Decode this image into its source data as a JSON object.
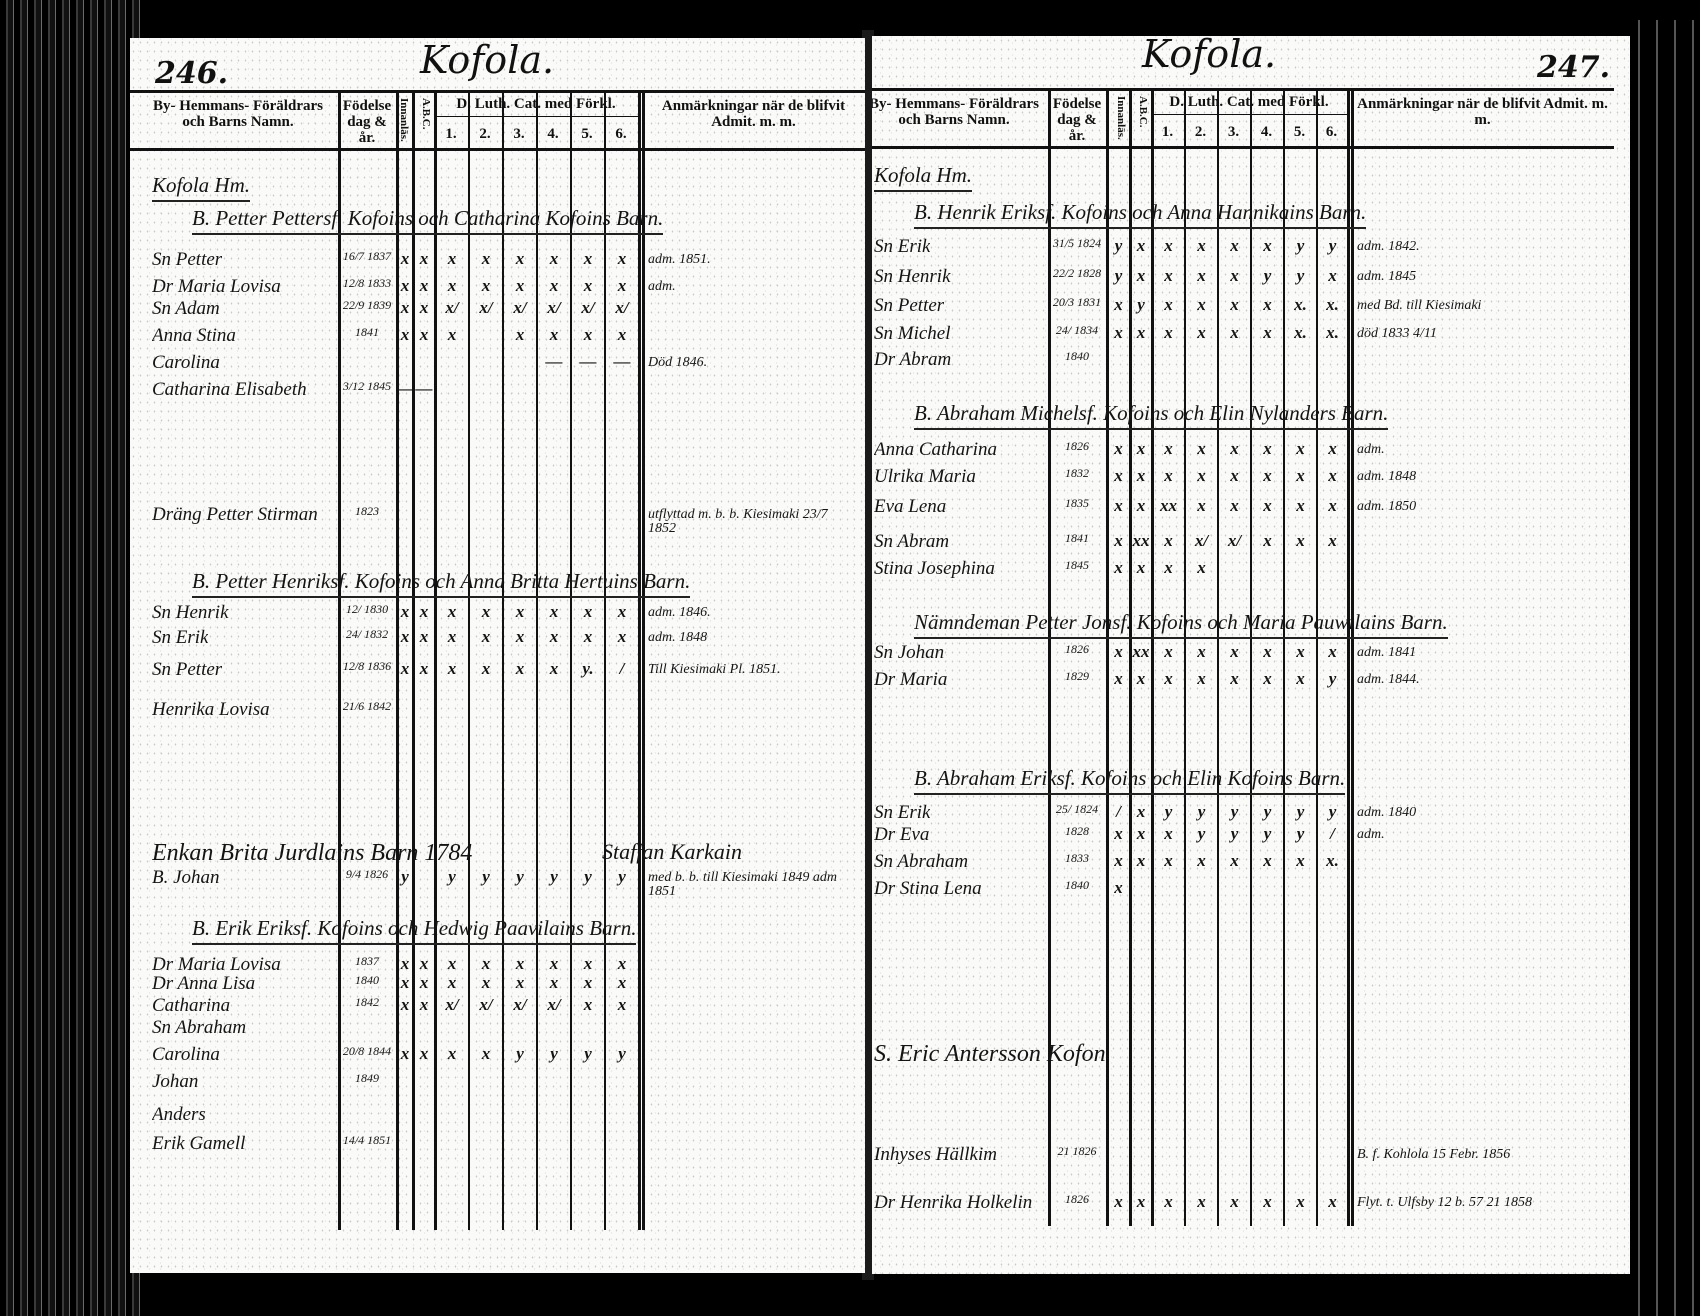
{
  "left_page": {
    "page_number": "246.",
    "village_title": "Kofola.",
    "headers": {
      "name": "By- Hemmans- Föräldrars och Barns Namn.",
      "birth": "Födelse dag & år.",
      "reading": "Innanläs.",
      "abc": "A.B.C.",
      "catechism": "D. Luth. Cat. med Förkl.",
      "cat_cols": [
        "1.",
        "2.",
        "3.",
        "4.",
        "5.",
        "6."
      ],
      "remarks": "Anmärkningar när de blifvit Admit. m. m."
    },
    "rows": [
      {
        "type": "section",
        "name": "Kofola Hm."
      },
      {
        "type": "section",
        "name": "B. Petter Pettersf. Kofoins och Catharina Kofoins Barn."
      },
      {
        "type": "person",
        "name": "Sn Petter",
        "date": "16/7 1837",
        "marks": [
          "x",
          "x",
          "x",
          "x",
          "x",
          "x",
          "x",
          "x"
        ],
        "remark": "adm. 1851."
      },
      {
        "type": "person",
        "name": "Dr Maria Lovisa",
        "date": "12/8 1833",
        "marks": [
          "x",
          "x",
          "x",
          "x",
          "x",
          "x",
          "x",
          "x"
        ],
        "remark": "adm."
      },
      {
        "type": "person",
        "name": "Sn Adam",
        "date": "22/9 1839",
        "marks": [
          "x",
          "x",
          "x/",
          "x/",
          "x/",
          "x/",
          "x/",
          "x/"
        ],
        "remark": ""
      },
      {
        "type": "person",
        "name": "Anna Stina",
        "date": "1841",
        "marks": [
          "x",
          "x",
          "x",
          "",
          "x",
          "x",
          "x",
          "x"
        ],
        "remark": ""
      },
      {
        "type": "person",
        "name": "Carolina",
        "date": "",
        "marks": [
          "",
          "",
          "",
          "",
          "",
          "—",
          "—",
          "—"
        ],
        "remark": "Död 1846."
      },
      {
        "type": "person",
        "name": "Catharina Elisabeth",
        "date": "3/12 1845",
        "marks": [
          "—",
          "—",
          "",
          "",
          "",
          "",
          "",
          ""
        ],
        "remark": ""
      },
      {
        "type": "person",
        "name": "Dräng Petter Stirman",
        "date": "1823",
        "marks": [
          "",
          "",
          "",
          "",
          "",
          "",
          "",
          ""
        ],
        "remark": "utflyttad   m. b. b. Kiesimaki 23/7 1852"
      },
      {
        "type": "section",
        "name": "B. Petter Henriksf. Kofoins och Anna Britta Hertuins Barn."
      },
      {
        "type": "person",
        "name": "Sn Henrik",
        "date": "12/ 1830",
        "marks": [
          "x",
          "x",
          "x",
          "x",
          "x",
          "x",
          "x",
          "x"
        ],
        "remark": "adm. 1846."
      },
      {
        "type": "person",
        "name": "Sn Erik",
        "date": "24/ 1832",
        "marks": [
          "x",
          "x",
          "x",
          "x",
          "x",
          "x",
          "x",
          "x"
        ],
        "remark": "adm. 1848"
      },
      {
        "type": "person",
        "name": "Sn Petter",
        "date": "12/8 1836",
        "marks": [
          "x",
          "x",
          "x",
          "x",
          "x",
          "x",
          "y.",
          "/"
        ],
        "remark": "Till Kiesimaki Pl. 1851."
      },
      {
        "type": "person",
        "name": "Henrika Lovisa",
        "date": "21/6 1842",
        "marks": [
          "",
          "",
          "",
          "",
          "",
          "",
          "",
          ""
        ],
        "remark": ""
      },
      {
        "type": "free",
        "name": "Enkan Brita Jurdlains Barn 1784",
        "remark": "Staffan Karkain"
      },
      {
        "type": "person",
        "name": "B. Johan",
        "date": "9/4 1826",
        "marks": [
          "y",
          "",
          "y",
          "y",
          "y",
          "y",
          "y",
          "y"
        ],
        "remark": "med b. b. till Kiesimaki 1849 adm 1851"
      },
      {
        "type": "section",
        "name": "B. Erik Eriksf. Kofoins och Hedwig Paavilains Barn."
      },
      {
        "type": "person",
        "name": "Dr Maria Lovisa",
        "date": "1837",
        "marks": [
          "x",
          "x",
          "x",
          "x",
          "x",
          "x",
          "x",
          "x"
        ],
        "remark": ""
      },
      {
        "type": "person",
        "name": "Dr Anna Lisa",
        "date": "1840",
        "marks": [
          "x",
          "x",
          "x",
          "x",
          "x",
          "x",
          "x",
          "x"
        ],
        "remark": ""
      },
      {
        "type": "person",
        "name": "Catharina",
        "date": "1842",
        "marks": [
          "x",
          "x",
          "x/",
          "x/",
          "x/",
          "x/",
          "x",
          "x"
        ],
        "remark": ""
      },
      {
        "type": "person",
        "name": "Sn Abraham",
        "date": "",
        "marks": [
          "",
          "",
          "",
          "",
          "",
          "",
          "",
          ""
        ],
        "remark": ""
      },
      {
        "type": "person",
        "name": "Carolina",
        "date": "20/8 1844",
        "marks": [
          "x",
          "x",
          "x",
          "x",
          "y",
          "y",
          "y",
          "y"
        ],
        "remark": ""
      },
      {
        "type": "person",
        "name": "Johan",
        "date": "1849",
        "marks": [
          "",
          "",
          "",
          "",
          "",
          "",
          "",
          ""
        ],
        "remark": ""
      },
      {
        "type": "person",
        "name": "Anders",
        "date": "",
        "marks": [
          "",
          "",
          "",
          "",
          "",
          "",
          "",
          ""
        ],
        "remark": ""
      },
      {
        "type": "person",
        "name": "Erik  Gamell",
        "date": "14/4 1851",
        "marks": [
          "",
          "",
          "",
          "",
          "",
          "",
          "",
          ""
        ],
        "remark": ""
      }
    ]
  },
  "right_page": {
    "page_number": "247.",
    "village_title": "Kofola.",
    "headers": {
      "name": "By- Hemmans- Föräldrars och Barns Namn.",
      "birth": "Födelse dag & år.",
      "reading": "Innanläs.",
      "abc": "A.B.C.",
      "catechism": "D. Luth. Cat. med Förkl.",
      "cat_cols": [
        "1.",
        "2.",
        "3.",
        "4.",
        "5.",
        "6."
      ],
      "remarks": "Anmärkningar när de blifvit Admit. m. m."
    },
    "rows": [
      {
        "type": "section",
        "name": "Kofola Hm."
      },
      {
        "type": "section",
        "name": "B. Henrik Eriksf. Kofoins och Anna Hannikains Barn."
      },
      {
        "type": "person",
        "name": "Sn Erik",
        "date": "31/5 1824",
        "marks": [
          "y",
          "x",
          "x",
          "x",
          "x",
          "x",
          "y",
          "y"
        ],
        "remark": "adm. 1842."
      },
      {
        "type": "person",
        "name": "Sn Henrik",
        "date": "22/2 1828",
        "marks": [
          "y",
          "x",
          "x",
          "x",
          "x",
          "y",
          "y",
          "x"
        ],
        "remark": "adm. 1845"
      },
      {
        "type": "person",
        "name": "Sn Petter",
        "date": "20/3 1831",
        "marks": [
          "x",
          "y",
          "x",
          "x",
          "x",
          "x",
          "x.",
          "x."
        ],
        "remark": "med Bd. till Kiesimaki"
      },
      {
        "type": "person",
        "name": "Sn Michel",
        "date": "24/ 1834",
        "marks": [
          "x",
          "x",
          "x",
          "x",
          "x",
          "x",
          "x.",
          "x."
        ],
        "remark": "död 1833 4/11"
      },
      {
        "type": "person",
        "name": "Dr Abram",
        "date": "1840",
        "marks": [
          "",
          "",
          "",
          "",
          "",
          "",
          "",
          ""
        ],
        "remark": ""
      },
      {
        "type": "section",
        "name": "B. Abraham Michelsf. Kofoins och Elin Nylanders Barn."
      },
      {
        "type": "person",
        "name": "Anna Catharina",
        "date": "1826",
        "marks": [
          "x",
          "x",
          "x",
          "x",
          "x",
          "x",
          "x",
          "x"
        ],
        "remark": "adm."
      },
      {
        "type": "person",
        "name": "Ulrika Maria",
        "date": "1832",
        "marks": [
          "x",
          "x",
          "x",
          "x",
          "x",
          "x",
          "x",
          "x"
        ],
        "remark": "adm. 1848"
      },
      {
        "type": "person",
        "name": "Eva Lena",
        "date": "1835",
        "marks": [
          "x",
          "x",
          "xx",
          "x",
          "x",
          "x",
          "x",
          "x"
        ],
        "remark": "adm. 1850"
      },
      {
        "type": "person",
        "name": "Sn Abram",
        "date": "1841",
        "marks": [
          "x",
          "xx",
          "x",
          "x/",
          "x/",
          "x",
          "x",
          "x"
        ],
        "remark": ""
      },
      {
        "type": "person",
        "name": "Stina Josephina",
        "date": "1845",
        "marks": [
          "x",
          "x",
          "x",
          "x",
          "",
          "",
          "",
          ""
        ],
        "remark": ""
      },
      {
        "type": "section",
        "name": "Nämndeman Petter Jonsf. Kofoins och Maria Pauwilains Barn."
      },
      {
        "type": "person",
        "name": "Sn Johan",
        "date": "1826",
        "marks": [
          "x",
          "xx",
          "x",
          "x",
          "x",
          "x",
          "x",
          "x"
        ],
        "remark": "adm. 1841"
      },
      {
        "type": "person",
        "name": "Dr Maria",
        "date": "1829",
        "marks": [
          "x",
          "x",
          "x",
          "x",
          "x",
          "x",
          "x",
          "y"
        ],
        "remark": "adm. 1844."
      },
      {
        "type": "section",
        "name": "B. Abraham Eriksf. Kofoins och Elin Kofoins Barn."
      },
      {
        "type": "person",
        "name": "Sn Erik",
        "date": "25/ 1824",
        "marks": [
          "/",
          "x",
          "y",
          "y",
          "y",
          "y",
          "y",
          "y"
        ],
        "remark": "adm. 1840"
      },
      {
        "type": "person",
        "name": "Dr Eva",
        "date": "1828",
        "marks": [
          "x",
          "x",
          "x",
          "y",
          "y",
          "y",
          "y",
          "/"
        ],
        "remark": "adm."
      },
      {
        "type": "person",
        "name": "Sn Abraham",
        "date": "1833",
        "marks": [
          "x",
          "x",
          "x",
          "x",
          "x",
          "x",
          "x",
          "x."
        ],
        "remark": ""
      },
      {
        "type": "person",
        "name": "Dr Stina Lena",
        "date": "1840",
        "marks": [
          "x",
          "",
          "",
          "",
          "",
          "",
          "",
          ""
        ],
        "remark": ""
      },
      {
        "type": "free",
        "name": "S. Eric Antersson Kofon",
        "remark": ""
      },
      {
        "type": "person",
        "name": "Inhyses Hällkim",
        "date": "21 1826",
        "marks": [
          "",
          "",
          "",
          "",
          "",
          "",
          "",
          ""
        ],
        "remark": "B. f. Kohlola 15 Febr. 1856"
      },
      {
        "type": "person",
        "name": "Dr Henrika Holkelin",
        "date": "1826",
        "marks": [
          "x",
          "x",
          "x",
          "x",
          "x",
          "x",
          "x",
          "x"
        ],
        "remark": "Flyt. t. Ulfsby 12 b. 57  21 1858"
      }
    ]
  }
}
